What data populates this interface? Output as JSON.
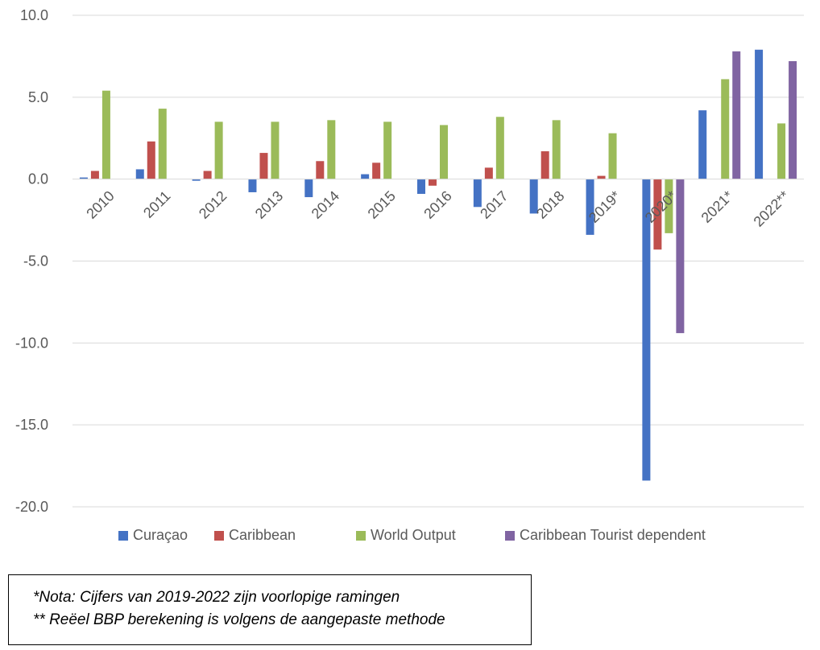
{
  "chart_data": {
    "type": "bar",
    "categories": [
      "2010",
      "2011",
      "2012",
      "2013",
      "2014",
      "2015",
      "2016",
      "2017",
      "2018",
      "2019*",
      "2020*",
      "2021*",
      "2022**"
    ],
    "series": [
      {
        "name": "Curaçao",
        "color": "#4472C4",
        "values": [
          0.1,
          0.6,
          -0.1,
          -0.8,
          -1.1,
          0.3,
          -0.9,
          -1.7,
          -2.1,
          -3.4,
          -18.4,
          4.2,
          7.9
        ]
      },
      {
        "name": "Caribbean",
        "color": "#C0504D",
        "values": [
          0.5,
          2.3,
          0.5,
          1.6,
          1.1,
          1.0,
          -0.4,
          0.7,
          1.7,
          0.2,
          -4.3,
          null,
          null
        ]
      },
      {
        "name": "World Output",
        "color": "#9BBB59",
        "values": [
          5.4,
          4.3,
          3.5,
          3.5,
          3.6,
          3.5,
          3.3,
          3.8,
          3.6,
          2.8,
          -3.3,
          6.1,
          3.4
        ]
      },
      {
        "name": "Caribbean Tourist dependent",
        "color": "#8064A2",
        "values": [
          null,
          null,
          null,
          null,
          null,
          null,
          null,
          null,
          null,
          null,
          -9.4,
          7.8,
          7.2
        ]
      }
    ],
    "yticks": [
      "10.0",
      "5.0",
      "0.0",
      "-5.0",
      "-10.0",
      "-15.0",
      "-20.0"
    ],
    "ylim": [
      -20,
      10
    ],
    "grid": true,
    "legend_position": "bottom",
    "title": "",
    "xlabel": "",
    "ylabel": ""
  },
  "notes": {
    "line1": "*Nota: Cijfers van 2019-2022 zijn voorlopige ramingen",
    "line2": "** Reëel BBP berekening is volgens de aangepaste methode"
  }
}
